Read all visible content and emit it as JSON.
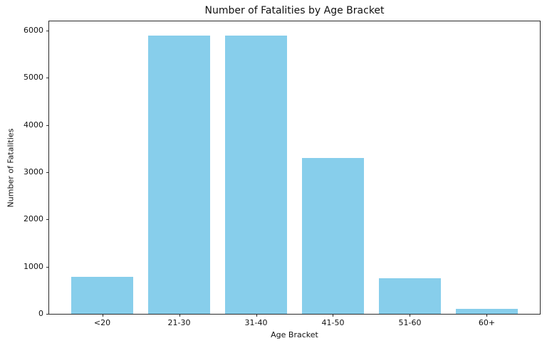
{
  "figure": {
    "background": "#ffffff",
    "text_color": "#111111",
    "spine_color": "#2a2a2a"
  },
  "chart_data": {
    "type": "bar",
    "title": "Number of Fatalities by Age Bracket",
    "xlabel": "Age Bracket",
    "ylabel": "Number of Fatalities",
    "categories": [
      "<20",
      "21-30",
      "31-40",
      "41-50",
      "51-60",
      "60+"
    ],
    "values": [
      780,
      5900,
      5900,
      3300,
      760,
      100
    ],
    "bar_color": "#87CEEB",
    "bar_width": 0.8,
    "xlim": [
      -0.69,
      5.69
    ],
    "ylim": [
      0,
      6195
    ],
    "yticks": [
      0,
      1000,
      2000,
      3000,
      4000,
      5000,
      6000
    ],
    "grid": false,
    "legend": "none"
  }
}
